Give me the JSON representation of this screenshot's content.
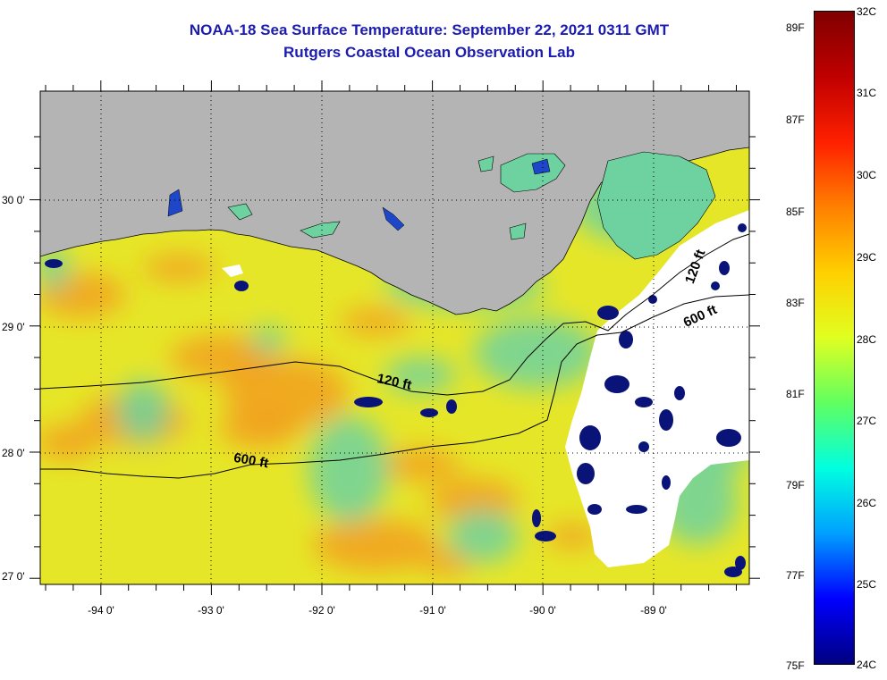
{
  "title": {
    "line1": "NOAA-18 Sea Surface Temperature:  September 22, 2021 0311 GMT",
    "line2": "Rutgers Coastal Ocean Observation Lab"
  },
  "map": {
    "lon_labels": [
      "-94 0'",
      "-93 0'",
      "-92 0'",
      "-91 0'",
      "-90 0'",
      "-89 0'"
    ],
    "lat_labels": [
      "30 0'",
      "29 0'",
      "28 0'",
      "27 0'"
    ],
    "contour_labels": [
      "120 ft",
      "600 ft",
      "600 ft",
      "120 ft"
    ],
    "colors": {
      "land": "#b4b4b4",
      "cloud": "#ffffff",
      "sst_base": "#e6e628",
      "sst_warm": "#f2a020",
      "sst_cool": "#6ed2a0",
      "sst_cold": "#0a1478"
    }
  },
  "colorbar": {
    "fahrenheit_labels": [
      "89F",
      "87F",
      "85F",
      "83F",
      "81F",
      "79F",
      "77F",
      "75F"
    ],
    "celsius_labels": [
      "32C",
      "31C",
      "30C",
      "29C",
      "28C",
      "27C",
      "26C",
      "25C",
      "24C"
    ],
    "stops": [
      "#000080",
      "#0000ff",
      "#00a0ff",
      "#00ffe0",
      "#60ff60",
      "#e0ff20",
      "#ffd000",
      "#ff8000",
      "#ff2000",
      "#c00000",
      "#800000"
    ]
  }
}
